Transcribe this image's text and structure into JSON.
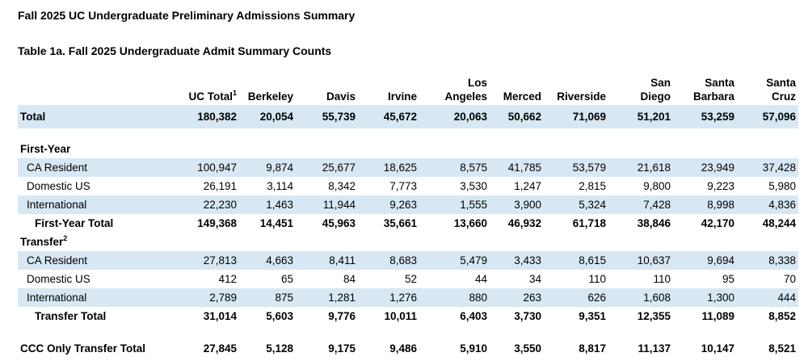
{
  "page": {
    "title": "Fall 2025 UC Undergraduate Preliminary Admissions Summary",
    "subtitle": "Table 1a. Fall 2025 Undergraduate Admit Summary Counts"
  },
  "colors": {
    "row_shade": "#d7e8f4",
    "text": "#000000",
    "background": "#ffffff"
  },
  "table": {
    "columns": [
      {
        "label": "UC Total",
        "footnote": "1"
      },
      {
        "label": "Berkeley"
      },
      {
        "label": "Davis"
      },
      {
        "label": "Irvine"
      },
      {
        "label": "Los\nAngeles"
      },
      {
        "label": "Merced"
      },
      {
        "label": "Riverside"
      },
      {
        "label": "San\nDiego"
      },
      {
        "label": "Santa\nBarbara"
      },
      {
        "label": "Santa\nCruz"
      }
    ],
    "rows": [
      {
        "label": "Total",
        "style": "total",
        "shaded": true,
        "values": [
          "180,382",
          "20,054",
          "55,739",
          "45,672",
          "20,063",
          "50,662",
          "71,069",
          "51,201",
          "53,259",
          "57,096"
        ]
      },
      {
        "type": "spacer"
      },
      {
        "label": "First-Year",
        "style": "section",
        "values": []
      },
      {
        "label": "CA Resident",
        "style": "item",
        "shaded": true,
        "values": [
          "100,947",
          "9,874",
          "25,677",
          "18,625",
          "8,575",
          "41,785",
          "53,579",
          "21,618",
          "23,949",
          "37,428"
        ]
      },
      {
        "label": "Domestic US",
        "style": "item",
        "shaded": false,
        "values": [
          "26,191",
          "3,114",
          "8,342",
          "7,773",
          "3,530",
          "1,247",
          "2,815",
          "9,800",
          "9,223",
          "5,980"
        ]
      },
      {
        "label": "International",
        "style": "item",
        "shaded": true,
        "values": [
          "22,230",
          "1,463",
          "11,944",
          "9,263",
          "1,555",
          "3,900",
          "5,324",
          "7,428",
          "8,998",
          "4,836"
        ]
      },
      {
        "label": "First-Year Total",
        "style": "subtotal",
        "shaded": false,
        "values": [
          "149,368",
          "14,451",
          "45,963",
          "35,661",
          "13,660",
          "46,932",
          "61,718",
          "38,846",
          "42,170",
          "48,244"
        ]
      },
      {
        "label": "Transfer",
        "style": "section",
        "footnote": "2",
        "values": []
      },
      {
        "label": "CA Resident",
        "style": "item",
        "shaded": true,
        "values": [
          "27,813",
          "4,663",
          "8,411",
          "8,683",
          "5,479",
          "3,433",
          "8,615",
          "10,637",
          "9,694",
          "8,338"
        ]
      },
      {
        "label": "Domestic US",
        "style": "item",
        "shaded": false,
        "values": [
          "412",
          "65",
          "84",
          "52",
          "44",
          "34",
          "110",
          "110",
          "95",
          "70"
        ]
      },
      {
        "label": "International",
        "style": "item",
        "shaded": true,
        "values": [
          "2,789",
          "875",
          "1,281",
          "1,276",
          "880",
          "263",
          "626",
          "1,608",
          "1,300",
          "444"
        ]
      },
      {
        "label": "Transfer Total",
        "style": "subtotal",
        "shaded": false,
        "values": [
          "31,014",
          "5,603",
          "9,776",
          "10,011",
          "6,403",
          "3,730",
          "9,351",
          "12,355",
          "11,089",
          "8,852"
        ]
      },
      {
        "type": "spacer"
      },
      {
        "label": "CCC Only Transfer Total",
        "style": "grand",
        "shaded": false,
        "values": [
          "27,845",
          "5,128",
          "9,175",
          "9,486",
          "5,910",
          "3,550",
          "8,817",
          "11,137",
          "10,147",
          "8,521"
        ]
      }
    ]
  }
}
